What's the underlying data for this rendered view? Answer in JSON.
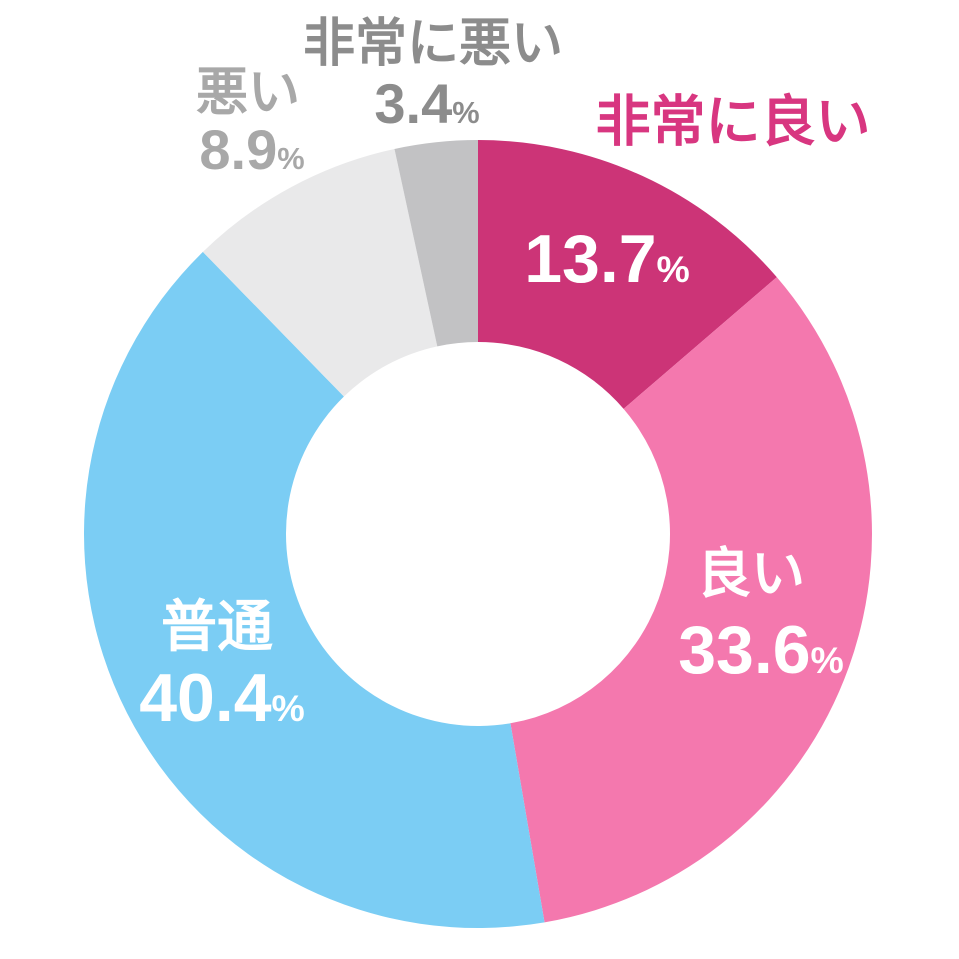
{
  "chart_data": {
    "type": "pie",
    "variant": "donut",
    "title": "",
    "unit": "%",
    "percent_sign": "%",
    "total": 100,
    "start_angle_deg": 0,
    "direction": "clockwise",
    "hole_ratio": 0.487,
    "background_color": "#ffffff",
    "legend": "none",
    "inside_value_color": "#ffffff",
    "categories": [
      "非常に良い",
      "良い",
      "普通",
      "悪い",
      "非常に悪い"
    ],
    "values": [
      13.7,
      33.6,
      40.4,
      8.9,
      3.4
    ],
    "slices": [
      {
        "key": "very-good",
        "label": "非常に良い",
        "value": 13.7,
        "value_str": "13.7",
        "color": "#cc3477",
        "callout_color": "#d83680",
        "label_placement": "name-outside-value-inside"
      },
      {
        "key": "good",
        "label": "良い",
        "value": 33.6,
        "value_str": "33.6",
        "color": "#f478ae",
        "callout_color": "#ffffff",
        "label_placement": "inside"
      },
      {
        "key": "neutral",
        "label": "普通",
        "value": 40.4,
        "value_str": "40.4",
        "color": "#7bcdf4",
        "callout_color": "#ffffff",
        "label_placement": "inside"
      },
      {
        "key": "bad",
        "label": "悪い",
        "value": 8.9,
        "value_str": "8.9",
        "color": "#e9e9ea",
        "callout_color": "#a8a8a8",
        "label_placement": "outside"
      },
      {
        "key": "very-bad",
        "label": "非常に悪い",
        "value": 3.4,
        "value_str": "3.4",
        "color": "#c2c2c4",
        "callout_color": "#8c8c8c",
        "label_placement": "outside"
      }
    ]
  }
}
